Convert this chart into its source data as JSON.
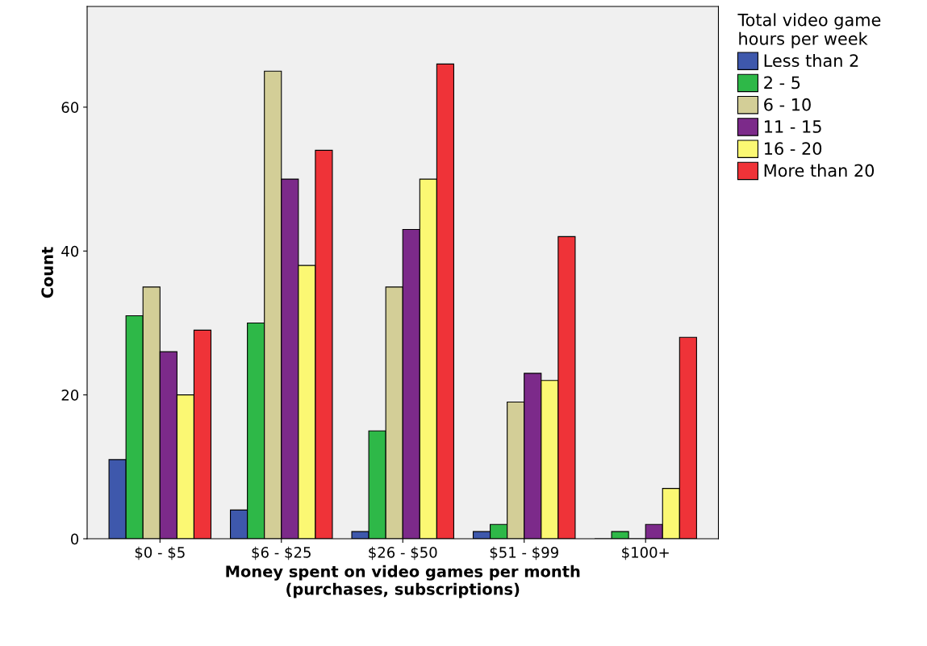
{
  "chart_data": {
    "type": "bar",
    "xlabel": "Money spent on video games per month\n(purchases, subscriptions)",
    "ylabel": "Count",
    "legend_title": "Total video game\nhours per week",
    "categories": [
      "$0 - $5",
      "$6 - $25",
      "$26 - $50",
      "$51 - $99",
      "$100+"
    ],
    "series": [
      {
        "name": "Less than 2",
        "color": "#3e58ac",
        "values": [
          11,
          4,
          1,
          1,
          0
        ]
      },
      {
        "name": "2 - 5",
        "color": "#2eb848",
        "values": [
          31,
          30,
          15,
          2,
          1
        ]
      },
      {
        "name": "6 - 10",
        "color": "#d3ce97",
        "values": [
          35,
          65,
          35,
          19,
          0
        ]
      },
      {
        "name": "11 - 15",
        "color": "#7c2a8a",
        "values": [
          26,
          50,
          43,
          23,
          2
        ]
      },
      {
        "name": "16 - 20",
        "color": "#fbf873",
        "values": [
          20,
          38,
          50,
          22,
          7
        ]
      },
      {
        "name": "More than 20",
        "color": "#ef3338",
        "values": [
          29,
          54,
          66,
          42,
          28
        ]
      }
    ],
    "ylim": [
      0,
      74
    ],
    "yticks": [
      0,
      20,
      40,
      60
    ],
    "grid": false,
    "legend": "right"
  }
}
